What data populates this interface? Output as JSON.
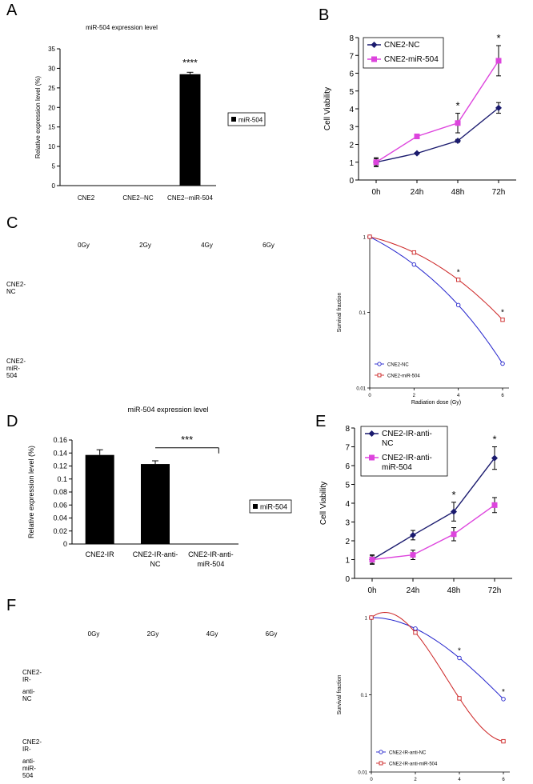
{
  "panels": {
    "A": {
      "letter": "A",
      "chart_data": {
        "type": "bar",
        "title": "miR-504 expression level",
        "ylabel": "Relative expression level (%)",
        "categories": [
          "CNE2",
          "CNE2--NC",
          "CNE2--miR-504"
        ],
        "series": [
          {
            "name": "miR-504",
            "values": [
              0,
              0,
              28.5
            ],
            "errors": [
              0,
              0,
              0.5
            ]
          }
        ],
        "ylim": [
          0,
          35
        ],
        "yticks": [
          0,
          5,
          10,
          15,
          20,
          25,
          30,
          35
        ],
        "annotations": [
          "****"
        ],
        "legend": "right"
      }
    },
    "B": {
      "letter": "B",
      "chart_data": {
        "type": "line",
        "ylabel": "Cell  Viability",
        "categories": [
          "0h",
          "24h",
          "48h",
          "72h"
        ],
        "series": [
          {
            "name": "CNE2-NC",
            "values": [
              1.0,
              1.5,
              2.2,
              4.05
            ],
            "errors": [
              0.2,
              0.05,
              0.08,
              0.3
            ],
            "color": "#1a1a6e"
          },
          {
            "name": "CNE2-miR-504",
            "values": [
              1.0,
              2.45,
              3.2,
              6.7
            ],
            "errors": [
              0.25,
              0.12,
              0.55,
              0.85
            ],
            "color": "#dd44dd"
          }
        ],
        "ylim": [
          0,
          8
        ],
        "yticks": [
          0,
          1,
          2,
          3,
          4,
          5,
          6,
          7,
          8
        ],
        "annotations": [
          "*",
          "*"
        ],
        "legend": "top-left"
      }
    },
    "C": {
      "letter": "C",
      "columns": [
        "0Gy",
        "2Gy",
        "4Gy",
        "6Gy"
      ],
      "rows": [
        "CNE2-NC",
        "CNE2-miR-504"
      ],
      "chart_data": {
        "type": "line",
        "xlabel": "Radiation dose (Gy)",
        "ylabel": "Survival fraction",
        "x": [
          0,
          2,
          4,
          6
        ],
        "series": [
          {
            "name": "CNE2-NC",
            "values": [
              1.0,
              0.43,
              0.125,
              0.021
            ],
            "color": "#2222cc"
          },
          {
            "name": "CNE2-miR-504",
            "values": [
              1.0,
              0.62,
              0.27,
              0.08
            ],
            "color": "#cc2222"
          }
        ],
        "xlim": [
          0,
          6
        ],
        "xticks": [
          0,
          2,
          4,
          6
        ],
        "ylim": [
          0.01,
          1
        ],
        "yscale": "log",
        "yticks": [
          "0.01",
          "0.1",
          "1"
        ],
        "annotations": [
          "*",
          "*"
        ],
        "legend": "bottom-left"
      }
    },
    "D": {
      "letter": "D",
      "chart_data": {
        "type": "bar",
        "title": "miR-504 expression level",
        "ylabel": "Relative expression level (%)",
        "categories": [
          "CNE2-IR",
          "CNE2-IR-anti-NC",
          "CNE2-IR-anti-miR-504"
        ],
        "category_lines": [
          [
            "CNE2-IR"
          ],
          [
            "CNE2-IR-anti-",
            "NC"
          ],
          [
            "CNE2-IR-anti-",
            "miR-504"
          ]
        ],
        "series": [
          {
            "name": "miR-504",
            "values": [
              0.137,
              0.123,
              0
            ],
            "errors": [
              0.008,
              0.005,
              0
            ]
          }
        ],
        "ylim": [
          0,
          0.16
        ],
        "yticks": [
          "0",
          "0.02",
          "0.04",
          "0.06",
          "0.08",
          "0.1",
          "0.12",
          "0.14",
          "0.16"
        ],
        "annotations": [
          "***"
        ],
        "legend": "right"
      }
    },
    "E": {
      "letter": "E",
      "chart_data": {
        "type": "line",
        "ylabel": "Cell  Viability",
        "categories": [
          "0h",
          "24h",
          "48h",
          "72h"
        ],
        "series": [
          {
            "name": "CNE2-IR-anti-NC",
            "legend_lines": [
              "CNE2-IR-anti-",
              "NC"
            ],
            "values": [
              1.0,
              2.3,
              3.55,
              6.4
            ],
            "errors": [
              0.25,
              0.25,
              0.5,
              0.6
            ],
            "color": "#1a1a6e"
          },
          {
            "name": "CNE2-IR-anti-miR-504",
            "legend_lines": [
              "CNE2-IR-anti-",
              "miR-504"
            ],
            "values": [
              1.0,
              1.25,
              2.35,
              3.9
            ],
            "errors": [
              0.2,
              0.25,
              0.35,
              0.4
            ],
            "color": "#dd44dd"
          }
        ],
        "ylim": [
          0,
          8
        ],
        "yticks": [
          0,
          1,
          2,
          3,
          4,
          5,
          6,
          7,
          8
        ],
        "annotations": [
          "*",
          "*"
        ],
        "legend": "top-left"
      }
    },
    "F": {
      "letter": "F",
      "columns": [
        "0Gy",
        "2Gy",
        "4Gy",
        "6Gy"
      ],
      "rows": [
        [
          "CNE2-IR-",
          "anti-NC"
        ],
        [
          "CNE2-IR-",
          "anti-miR-504"
        ]
      ],
      "chart_data": {
        "type": "line",
        "xlabel": "Radiation dose (Gy)",
        "ylabel": "Survival fraction",
        "x": [
          0,
          2,
          4,
          6
        ],
        "series": [
          {
            "name": "CNE2-IR-anti-NC",
            "values": [
              1.0,
              0.72,
              0.3,
              0.088
            ],
            "color": "#2222cc"
          },
          {
            "name": "CNE2-IR-anti-miR-504",
            "values": [
              1.0,
              0.64,
              0.09,
              0.025
            ],
            "color": "#cc2222"
          }
        ],
        "xlim": [
          0,
          6
        ],
        "xticks": [
          0,
          2,
          4,
          6
        ],
        "ylim": [
          0.01,
          1
        ],
        "yscale": "log",
        "yticks": [
          "0.01",
          "0.1",
          "1"
        ],
        "annotations": [
          "*",
          "*"
        ],
        "legend": "bottom-left"
      }
    }
  }
}
